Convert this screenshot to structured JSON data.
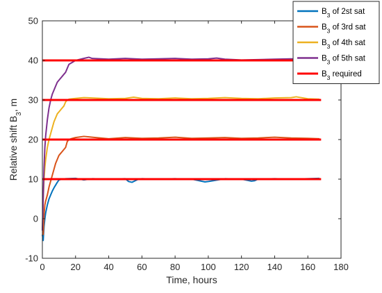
{
  "chart_data": {
    "type": "line",
    "xlabel": "Time, hours",
    "ylabel": "Relative shift B",
    "ylabel_sub": "3",
    "ylabel_unit": ", m",
    "xlim": [
      0,
      180
    ],
    "ylim": [
      -10,
      50
    ],
    "xticks": [
      0,
      20,
      40,
      60,
      80,
      100,
      120,
      140,
      160,
      180
    ],
    "yticks": [
      -10,
      0,
      10,
      20,
      30,
      40,
      50
    ],
    "grid": false,
    "legend_position": "top-right",
    "series": [
      {
        "name_main": "B",
        "name_sub": "3",
        "name_rest": " of 2st sat",
        "color": "#0072BD",
        "x": [
          0,
          0.5,
          1,
          1.5,
          2,
          3,
          4,
          5,
          6,
          7,
          8,
          9,
          10,
          12,
          14,
          20,
          25,
          30,
          40,
          50,
          52,
          54,
          56,
          58,
          60,
          70,
          80,
          90,
          98,
          100,
          103,
          110,
          120,
          126,
          128,
          130,
          140,
          150,
          160,
          167
        ],
        "y": [
          -4,
          -5.5,
          -2,
          0,
          1.5,
          3.5,
          5,
          6,
          7,
          7.8,
          8.5,
          9.2,
          9.8,
          10,
          10.1,
          10.2,
          9.8,
          10.1,
          10,
          10.1,
          9.4,
          9.2,
          9.6,
          10,
          10.1,
          10,
          10.1,
          10,
          9.3,
          9.4,
          9.6,
          10.1,
          10,
          9.5,
          9.6,
          10,
          10.1,
          10,
          10.1,
          10.2
        ]
      },
      {
        "name_main": "B",
        "name_sub": "3",
        "name_rest": " of 3rd sat",
        "color": "#D95319",
        "x": [
          0,
          0.5,
          1,
          1.5,
          2,
          3,
          4,
          5,
          6,
          7,
          8,
          9,
          10,
          11,
          12,
          13,
          14,
          15,
          16,
          18,
          20,
          25,
          30,
          40,
          50,
          60,
          70,
          80,
          90,
          100,
          110,
          120,
          130,
          140,
          150,
          160,
          167
        ],
        "y": [
          -2,
          -4,
          1,
          3.5,
          4.5,
          6,
          8,
          9.5,
          11,
          12.5,
          14,
          15,
          16,
          16.5,
          17,
          17.5,
          18,
          19.5,
          20,
          20.3,
          20.5,
          20.8,
          20.6,
          20.2,
          20.5,
          20.3,
          20.4,
          20.6,
          20.3,
          20.4,
          20.5,
          20.3,
          20.4,
          20.6,
          20.4,
          20.3,
          20.2
        ]
      },
      {
        "name_main": "B",
        "name_sub": "3",
        "name_rest": " of 4th sat",
        "color": "#EDB120",
        "x": [
          0,
          0.5,
          1,
          1.5,
          2,
          3,
          4,
          5,
          6,
          7,
          8,
          9,
          10,
          11,
          12,
          13,
          14,
          15,
          16,
          18,
          20,
          25,
          30,
          40,
          50,
          55,
          60,
          70,
          80,
          90,
          100,
          110,
          120,
          130,
          140,
          150,
          153,
          160,
          167
        ],
        "y": [
          -3,
          5,
          10,
          13,
          15,
          18,
          20,
          21.5,
          23,
          24.5,
          25.5,
          26.5,
          27,
          27.5,
          28,
          28.5,
          29.5,
          30,
          30.2,
          30.3,
          30.4,
          30.6,
          30.5,
          30.3,
          30.4,
          30.7,
          30.4,
          30.3,
          30.5,
          30.3,
          30.4,
          30.6,
          30.4,
          30.3,
          30.5,
          30.6,
          30.8,
          30.3,
          30.2
        ]
      },
      {
        "name_main": "B",
        "name_sub": "3",
        "name_rest": " of 5th sat",
        "color": "#7E2F8E",
        "x": [
          0,
          0.5,
          1,
          1.5,
          2,
          3,
          4,
          5,
          6,
          7,
          8,
          9,
          10,
          11,
          12,
          13,
          14,
          15,
          16,
          18,
          20,
          25,
          28,
          30,
          40,
          50,
          60,
          70,
          80,
          90,
          100,
          105,
          110,
          120,
          130,
          140,
          150,
          160,
          167
        ],
        "y": [
          -3,
          5,
          13,
          18,
          21,
          25,
          28,
          30,
          31.5,
          32.5,
          33.5,
          34.5,
          35,
          35.5,
          36,
          36.5,
          37,
          38,
          39,
          39.5,
          40,
          40.5,
          40.8,
          40.5,
          40.3,
          40.5,
          40.3,
          40.4,
          40.5,
          40.3,
          40.4,
          40.6,
          40.3,
          40.1,
          40.2,
          40.3,
          40.4,
          40.2,
          40.1
        ]
      },
      {
        "name_main": "B",
        "name_sub": "3",
        "name_rest": " required",
        "color": "#FF0000",
        "segments": [
          {
            "x": [
              0,
              168
            ],
            "y": [
              10,
              10
            ]
          },
          {
            "x": [
              0,
              168
            ],
            "y": [
              20,
              20
            ]
          },
          {
            "x": [
              0,
              168
            ],
            "y": [
              30,
              30
            ]
          },
          {
            "x": [
              0,
              168
            ],
            "y": [
              40,
              40
            ]
          }
        ]
      }
    ]
  }
}
